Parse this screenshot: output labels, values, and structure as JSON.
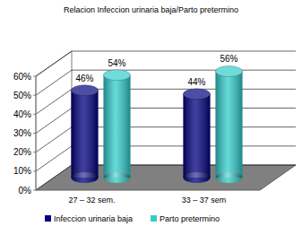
{
  "chart_data": {
    "type": "bar",
    "title": "Relacion Infeccion urinaria baja/Parto pretermino",
    "categories": [
      "27 – 32 sem.",
      "33 – 37 sem"
    ],
    "series": [
      {
        "name": "Infeccion urinaria baja",
        "color": "#000080",
        "values": [
          46,
          44
        ],
        "value_labels": [
          "46%",
          "44%"
        ]
      },
      {
        "name": "Parto pretermino",
        "color": "#33cccc",
        "values": [
          54,
          56
        ],
        "value_labels": [
          "54%",
          "56%"
        ]
      }
    ],
    "ylim": [
      0,
      60
    ],
    "yticks": [
      {
        "value": 0,
        "label": "0%"
      },
      {
        "value": 10,
        "label": "10%"
      },
      {
        "value": 20,
        "label": "20%"
      },
      {
        "value": 30,
        "label": "30%"
      },
      {
        "value": 40,
        "label": "40%"
      },
      {
        "value": 50,
        "label": "50%"
      },
      {
        "value": 60,
        "label": "60%"
      }
    ],
    "grid": true,
    "data_labels": true,
    "legend": "bottom"
  }
}
